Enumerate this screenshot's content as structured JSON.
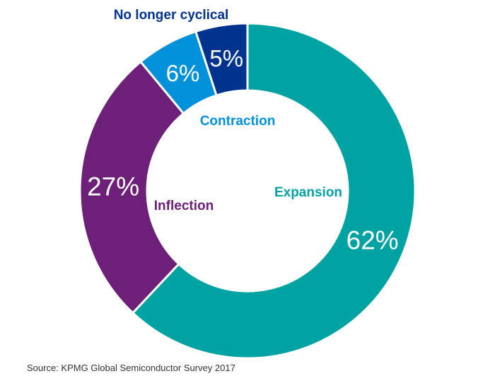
{
  "chart_data": {
    "type": "pie",
    "donut": true,
    "slices": [
      {
        "label": "Expansion",
        "value": 62,
        "value_label": "62%",
        "color": "#00A3A1"
      },
      {
        "label": "Inflection",
        "value": 27,
        "value_label": "27%",
        "color": "#6D2077"
      },
      {
        "label": "Contraction",
        "value": 6,
        "value_label": "6%",
        "color": "#0091DA"
      },
      {
        "label": "No longer cyclical",
        "value": 5,
        "value_label": "5%",
        "color": "#00338D"
      }
    ]
  },
  "source": "Source: KPMG Global Semiconductor Survey 2017"
}
